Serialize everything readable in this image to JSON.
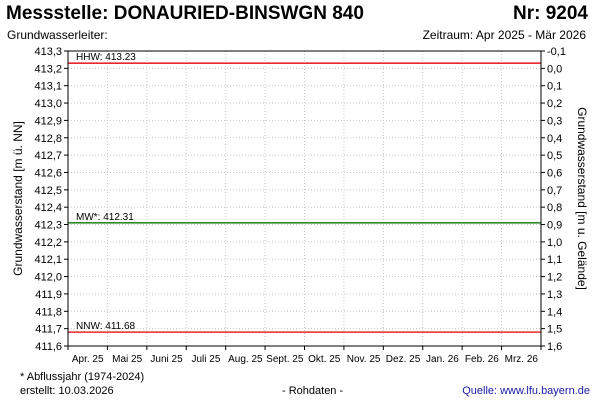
{
  "header": {
    "title": "Messstelle: DONAURIED-BINSWGN 840",
    "number": "Nr: 9204",
    "aquifer_label": "Grundwasserleiter:",
    "period": "Zeitraum: Apr 2025 - Mär 2026"
  },
  "footer": {
    "note": "* Abflussjahr (1974-2024)",
    "created": "erstellt:  10.03.2026",
    "raw": "- Rohdaten -",
    "source": "Quelle: www.lfu.bayern.de"
  },
  "colors": {
    "high": "#e8272a",
    "mean": "#2c8a2c",
    "low": "#e8272a",
    "grid": "#c8c8c8",
    "frame": "#000000"
  },
  "chart_data": {
    "type": "line",
    "ylabel_left": "Grundwasserstand [m ü. NN]",
    "ylabel_right": "Grundwasserstand [m u. Gelände]",
    "ylim_left": [
      411.6,
      413.3
    ],
    "ylim_right": [
      1.6,
      -0.1
    ],
    "left_ticks": [
      "413,3",
      "413,2",
      "413,1",
      "413,0",
      "412,9",
      "412,8",
      "412,7",
      "412,6",
      "412,5",
      "412,4",
      "412,3",
      "412,2",
      "412,1",
      "412,0",
      "411,9",
      "411,8",
      "411,7",
      "411,6"
    ],
    "right_ticks": [
      "-0,1",
      "0,0",
      "0,1",
      "0,2",
      "0,3",
      "0,4",
      "0,5",
      "0,6",
      "0,7",
      "0,8",
      "0,9",
      "1,0",
      "1,1",
      "1,2",
      "1,3",
      "1,4",
      "1,5",
      "1,6"
    ],
    "categories": [
      "Apr. 25",
      "Mai 25",
      "Juni 25",
      "Juli 25",
      "Aug. 25",
      "Sept. 25",
      "Okt. 25",
      "Nov. 25",
      "Dez. 25",
      "Jan. 26",
      "Feb. 26",
      "Mrz. 26"
    ],
    "grid": true,
    "reference_lines": [
      {
        "key": "high",
        "label": "HHW: 413.23",
        "value": 413.23
      },
      {
        "key": "mean",
        "label": "MW*: 412.31",
        "value": 412.31
      },
      {
        "key": "low",
        "label": "NNW: 411.68",
        "value": 411.68
      }
    ]
  }
}
